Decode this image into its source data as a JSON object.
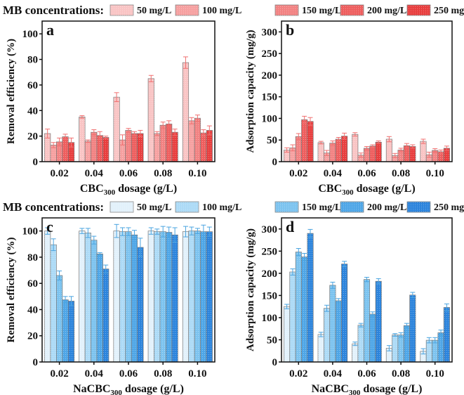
{
  "legend_label": "MB concentrations:",
  "series_names": [
    "50 mg/L",
    "100 mg/L",
    "150 mg/L",
    "200 mg/L",
    "250 mg/L"
  ],
  "colors": {
    "red": [
      "#f9c4c4",
      "#f6a0a0",
      "#f28282",
      "#ee5e5e",
      "#e83e3e"
    ],
    "red_err": "#f07070",
    "blue": [
      "#e2f1fb",
      "#acdaf6",
      "#7cc3ef",
      "#4ea6e7",
      "#2c84dc"
    ],
    "blue_err": "#4aa4e0"
  },
  "chart_data": [
    {
      "panel": "a",
      "type": "bar",
      "categories": [
        "0.02",
        "0.04",
        "0.06",
        "0.08",
        "0.10"
      ],
      "xlabel": "CBC",
      "xlabel_sub": "300",
      "xlabel_tail": " dosage (g/L)",
      "ylabel": "Removal efficiency (%)",
      "ylim": [
        0,
        110
      ],
      "yticks": [
        0,
        20,
        40,
        60,
        80,
        100
      ],
      "palette": "red",
      "series": [
        {
          "name": "50 mg/L",
          "values": [
            22,
            35,
            50.5,
            65,
            77.5
          ],
          "errors": [
            3.5,
            1,
            3.5,
            2.5,
            4.5
          ]
        },
        {
          "name": "100 mg/L",
          "values": [
            13,
            16,
            17,
            22,
            32
          ],
          "errors": [
            2,
            1,
            4,
            1.5,
            2.5
          ]
        },
        {
          "name": "150 mg/L",
          "values": [
            15.5,
            23,
            24.5,
            28.5,
            34
          ],
          "errors": [
            3,
            2,
            1.5,
            2.5,
            2.5
          ]
        },
        {
          "name": "200 mg/L",
          "values": [
            19.5,
            20.5,
            22,
            29.5,
            22.5
          ],
          "errors": [
            2,
            3,
            1.5,
            2.5,
            2.5
          ]
        },
        {
          "name": "250 mg/L",
          "values": [
            15,
            19,
            22,
            23,
            24.5
          ],
          "errors": [
            3.5,
            1,
            2.5,
            2.5,
            3.5
          ]
        }
      ]
    },
    {
      "panel": "b",
      "type": "bar",
      "categories": [
        "0.02",
        "0.04",
        "0.06",
        "0.08",
        "0.10"
      ],
      "xlabel": "CBC",
      "xlabel_sub": "300",
      "xlabel_tail": " dosage (g/L)",
      "ylabel": "Adsorption capacity (mg/g)",
      "ylim": [
        0,
        325
      ],
      "yticks": [
        0,
        50,
        100,
        150,
        200,
        250,
        300
      ],
      "palette": "red",
      "series": [
        {
          "name": "50 mg/L",
          "values": [
            27,
            44,
            63,
            52,
            47
          ],
          "errors": [
            5,
            3,
            4,
            6,
            5
          ]
        },
        {
          "name": "100 mg/L",
          "values": [
            32,
            20,
            15,
            14,
            16
          ],
          "errors": [
            7,
            6,
            5,
            5,
            6
          ]
        },
        {
          "name": "150 mg/L",
          "values": [
            58,
            43,
            31,
            27,
            26
          ],
          "errors": [
            7,
            5,
            4,
            4,
            4
          ]
        },
        {
          "name": "200 mg/L",
          "values": [
            97,
            52,
            36,
            37,
            23
          ],
          "errors": [
            8,
            4,
            3,
            5,
            4
          ]
        },
        {
          "name": "250 mg/L",
          "values": [
            93,
            59,
            45,
            35,
            31
          ],
          "errors": [
            9,
            7,
            3,
            4,
            5
          ]
        }
      ]
    },
    {
      "panel": "c",
      "type": "bar",
      "categories": [
        "0.02",
        "0.04",
        "0.06",
        "0.08",
        "0.10"
      ],
      "xlabel": "NaCBC",
      "xlabel_sub": "300",
      "xlabel_tail": " dosage (g/L)",
      "ylabel": "Removal efficiency (%)",
      "ylim": [
        0,
        110
      ],
      "yticks": [
        0,
        20,
        40,
        60,
        80,
        100
      ],
      "palette": "blue",
      "series": [
        {
          "name": "50 mg/L",
          "values": [
            100,
            100,
            100,
            100,
            99.5
          ],
          "errors": [
            2.5,
            2,
            5,
            2.5,
            4
          ]
        },
        {
          "name": "100 mg/L",
          "values": [
            89.5,
            98.5,
            99.5,
            99.5,
            100
          ],
          "errors": [
            4.5,
            3.5,
            3,
            2,
            3
          ]
        },
        {
          "name": "150 mg/L",
          "values": [
            66,
            93,
            99.5,
            99.5,
            100
          ],
          "errors": [
            3.5,
            3,
            3,
            4,
            2
          ]
        },
        {
          "name": "200 mg/L",
          "values": [
            47.5,
            82.5,
            97,
            99,
            99.5
          ],
          "errors": [
            2.5,
            1,
            3.5,
            4,
            5
          ]
        },
        {
          "name": "250 mg/L",
          "values": [
            46.5,
            71,
            87.5,
            97,
            99.5
          ],
          "errors": [
            3.5,
            3,
            7,
            5.5,
            3.5
          ]
        }
      ]
    },
    {
      "panel": "d",
      "type": "bar",
      "categories": [
        "0.02",
        "0.04",
        "0.06",
        "0.08",
        "0.10"
      ],
      "xlabel": "NaCBC",
      "xlabel_sub": "300",
      "xlabel_tail": " dosage (g/L)",
      "ylabel": "Adsorption capacity (mg/g)",
      "ylim": [
        0,
        325
      ],
      "yticks": [
        0,
        50,
        100,
        150,
        200,
        250,
        300
      ],
      "palette": "blue",
      "series": [
        {
          "name": "50 mg/L",
          "values": [
            125,
            62,
            41,
            31,
            24
          ],
          "errors": [
            5,
            5,
            4,
            6,
            6
          ]
        },
        {
          "name": "100 mg/L",
          "values": [
            203,
            121,
            83,
            61,
            49
          ],
          "errors": [
            7,
            7,
            4,
            3,
            6
          ]
        },
        {
          "name": "150 mg/L",
          "values": [
            248,
            173,
            186,
            61,
            49
          ],
          "errors": [
            8,
            7,
            5,
            5,
            6
          ]
        },
        {
          "name": "200 mg/L",
          "values": [
            237,
            138,
            108,
            82,
            66
          ],
          "errors": [
            8,
            5,
            5,
            5,
            6
          ]
        },
        {
          "name": "250 mg/L",
          "values": [
            290,
            221,
            182,
            151,
            123
          ],
          "errors": [
            9,
            6,
            6,
            6,
            8
          ]
        }
      ]
    }
  ]
}
